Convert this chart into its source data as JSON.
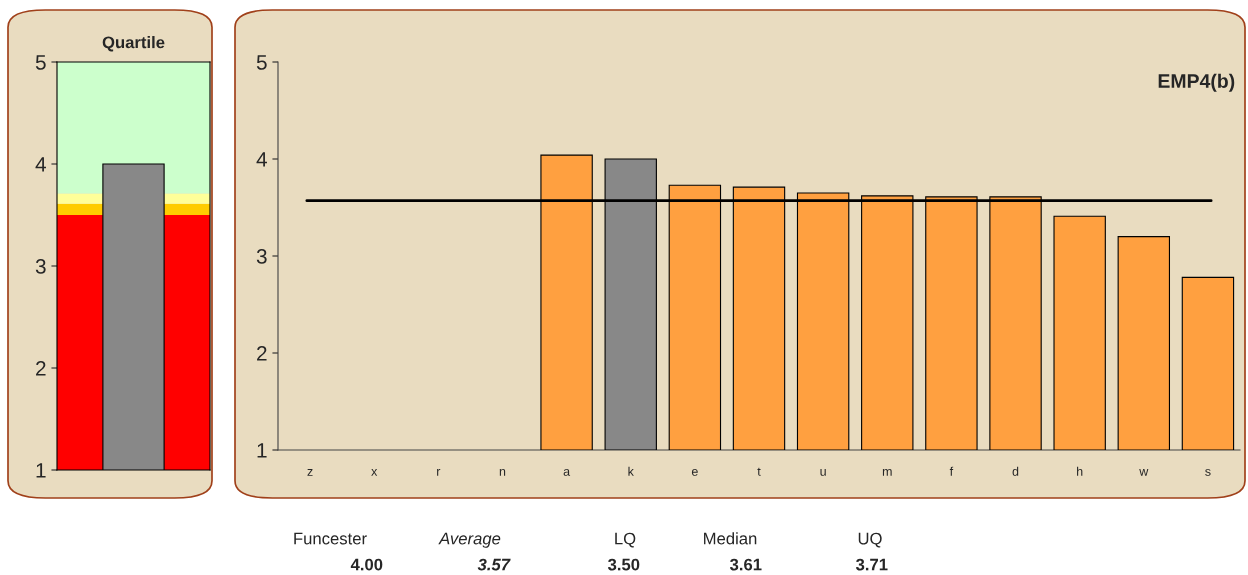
{
  "chart_data": [
    {
      "type": "bar",
      "title": "Quartile",
      "categories": [
        null
      ],
      "values": [
        4.0
      ],
      "colors": [
        "#888888"
      ],
      "ylim": [
        1,
        5
      ],
      "yticks": [
        1,
        2,
        3,
        4,
        5
      ],
      "grid": false,
      "legend": false,
      "bands": [
        {
          "axis": "y",
          "from": 1,
          "to": 3.5,
          "color": "#ff0000"
        },
        {
          "axis": "y",
          "from": 3.5,
          "to": 3.61,
          "color": "#ffcc00"
        },
        {
          "axis": "y",
          "from": 3.61,
          "to": 3.71,
          "color": "#ffff99"
        },
        {
          "axis": "y",
          "from": 3.71,
          "to": 5,
          "color": "#ccffcc"
        }
      ]
    },
    {
      "type": "bar",
      "title": "EMP4(b)",
      "categories": [
        "z",
        "x",
        "r",
        "n",
        "a",
        "k",
        "e",
        "t",
        "u",
        "m",
        "f",
        "d",
        "h",
        "w",
        "s"
      ],
      "values": [
        null,
        null,
        null,
        null,
        4.04,
        4.0,
        3.73,
        3.71,
        3.65,
        3.62,
        3.61,
        3.61,
        3.41,
        3.2,
        2.78
      ],
      "colors": [
        "#ffa040",
        "#ffa040",
        "#ffa040",
        "#ffa040",
        "#ffa040",
        "#888888",
        "#ffa040",
        "#ffa040",
        "#ffa040",
        "#ffa040",
        "#ffa040",
        "#ffa040",
        "#ffa040",
        "#ffa040",
        "#ffa040"
      ],
      "ylim": [
        1,
        5
      ],
      "yticks": [
        1,
        2,
        3,
        4,
        5
      ],
      "grid": false,
      "legend": false,
      "ref_lines": [
        {
          "axis": "y",
          "value": 3.57,
          "color": "#000000"
        }
      ],
      "annotations": [
        "Funcester",
        "Average",
        "LQ",
        "Median",
        "UQ",
        "4.00",
        "3.57",
        "3.50",
        "3.61",
        "3.71"
      ]
    }
  ]
}
